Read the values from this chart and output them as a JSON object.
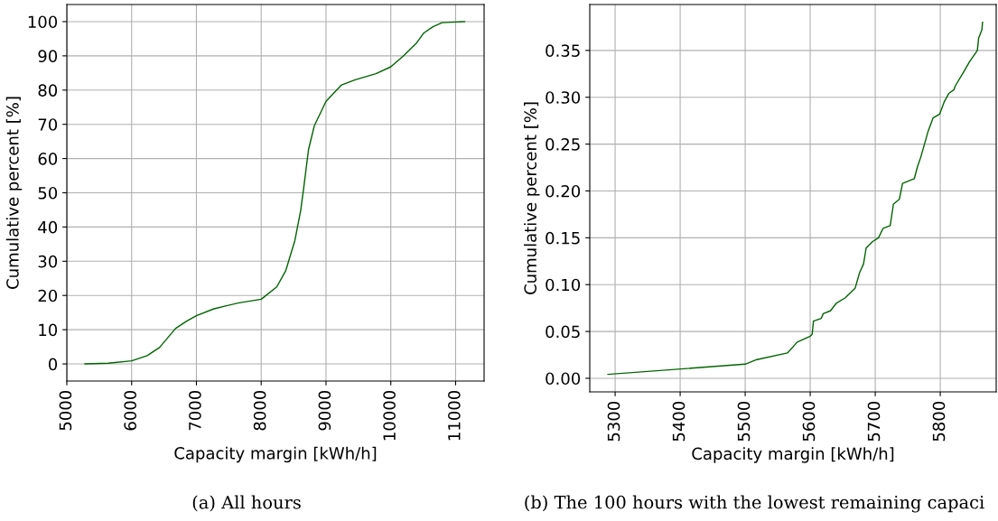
{
  "chart_data": [
    {
      "type": "line",
      "xlabel": "Capacity margin [kWh/h]",
      "ylabel": "Cumulative percent [%]",
      "annotations": [
        "(a) All hours"
      ],
      "xlim": [
        5000,
        11440
      ],
      "ylim": [
        -5,
        105
      ],
      "xticks": [
        5000,
        6000,
        7000,
        8000,
        9000,
        10000,
        11000
      ],
      "yticks": [
        0,
        10,
        20,
        30,
        40,
        50,
        60,
        70,
        80,
        90,
        100
      ],
      "grid": true,
      "legend": false,
      "series": [
        {
          "color": "#006400",
          "x": [
            5280,
            5640,
            6000,
            6240,
            6430,
            6680,
            6850,
            7000,
            7270,
            7640,
            8000,
            8240,
            8380,
            8520,
            8610,
            8660,
            8730,
            8820,
            9000,
            9240,
            9450,
            9770,
            10000,
            10190,
            10400,
            10510,
            10650,
            10790,
            11140
          ],
          "values": [
            0,
            0.2,
            0.9,
            2.4,
            4.8,
            10.4,
            12.5,
            14.1,
            16.1,
            17.8,
            18.9,
            22.5,
            27.3,
            36.1,
            44.9,
            52,
            62.6,
            69.6,
            76.7,
            81.5,
            83,
            84.8,
            86.8,
            89.9,
            93.8,
            96.7,
            98.5,
            99.7,
            100
          ]
        }
      ]
    },
    {
      "type": "line",
      "xlabel": "Capacity margin [kWh/h]",
      "ylabel": "Cumulative percent [%]",
      "annotations": [
        "(b) The 100 hours with the lowest remaining capaci"
      ],
      "xlim": [
        5261,
        5886
      ],
      "ylim": [
        -0.0145,
        0.399
      ],
      "xticks": [
        5300,
        5400,
        5500,
        5600,
        5700,
        5800
      ],
      "yticks": [
        {
          "value": 0,
          "label": "0.00"
        },
        0.05,
        {
          "value": 0.1,
          "label": "0.10"
        },
        0.15,
        {
          "value": 0.2,
          "label": "0.20"
        },
        0.25,
        {
          "value": 0.3,
          "label": "0.30"
        },
        0.35
      ],
      "grid": true,
      "legend": false,
      "series": [
        {
          "color": "#006400",
          "x": [
            5289,
            5500,
            5518,
            5565,
            5580,
            5600,
            5603,
            5605,
            5617,
            5620,
            5631,
            5640,
            5654,
            5669,
            5676,
            5682,
            5686,
            5696,
            5705,
            5712,
            5723,
            5728,
            5737,
            5742,
            5760,
            5765,
            5770,
            5781,
            5789,
            5799,
            5806,
            5813,
            5821,
            5823,
            5836,
            5845,
            5857,
            5859,
            5864,
            5865
          ],
          "values": [
            0.0042,
            0.0151,
            0.02,
            0.027,
            0.0386,
            0.045,
            0.047,
            0.061,
            0.064,
            0.069,
            0.072,
            0.08,
            0.086,
            0.096,
            0.113,
            0.122,
            0.139,
            0.146,
            0.15,
            0.16,
            0.163,
            0.186,
            0.191,
            0.208,
            0.213,
            0.226,
            0.236,
            0.263,
            0.278,
            0.282,
            0.295,
            0.304,
            0.308,
            0.312,
            0.327,
            0.338,
            0.35,
            0.363,
            0.372,
            0.38
          ]
        }
      ]
    }
  ]
}
